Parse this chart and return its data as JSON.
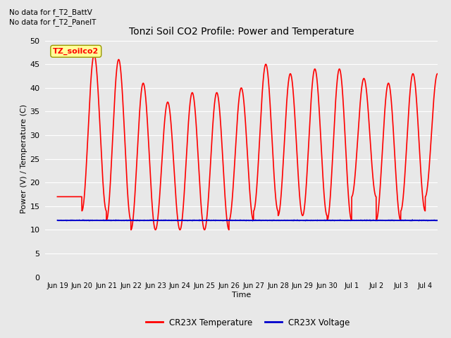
{
  "title": "Tonzi Soil CO2 Profile: Power and Temperature",
  "xlabel": "Time",
  "ylabel": "Power (V) / Temperature (C)",
  "ylim": [
    0,
    50
  ],
  "yticks": [
    0,
    5,
    10,
    15,
    20,
    25,
    30,
    35,
    40,
    45,
    50
  ],
  "bg_color": "#e8e8e8",
  "plot_bg_color": "#e8e8e8",
  "grid_color": "#ffffff",
  "no_data_text": [
    "No data for f_T2_BattV",
    "No data for f_T2_PanelT"
  ],
  "legend_label_temp": "CR23X Temperature",
  "legend_label_volt": "CR23X Voltage",
  "temp_color": "#ff0000",
  "volt_color": "#0000cc",
  "line_width": 1.2,
  "legend_box_label": "TZ_soilco2",
  "legend_box_color": "#ffff99",
  "legend_box_border": "#999900",
  "x_tick_labels": [
    "Jun 19",
    "Jun 20",
    "Jun 21",
    "Jun 22",
    "Jun 23",
    "Jun 24",
    "Jun 25",
    "Jun 26",
    "Jun 27",
    "Jun 28",
    "Jun 29",
    "Jun 30",
    "Jul 1",
    "Jul 2",
    "Jul 3",
    "Jul 4"
  ],
  "voltage_value": 12.0,
  "peaks": [
    17,
    47,
    46,
    41,
    37,
    39,
    39,
    40,
    45,
    43,
    44,
    44,
    42,
    41,
    43,
    43
  ],
  "troughs": [
    17,
    14,
    12,
    10,
    10,
    10,
    10,
    12,
    14,
    13,
    13,
    12,
    17,
    12,
    14,
    17
  ]
}
